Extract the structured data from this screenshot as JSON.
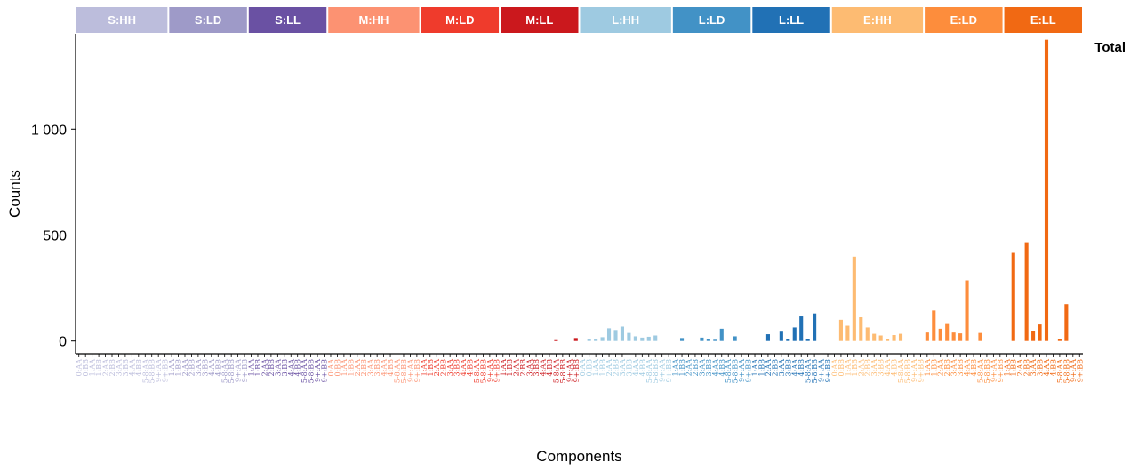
{
  "chart_data": {
    "type": "bar",
    "facet_label": "Total",
    "xlabel": "Components",
    "ylabel": "Counts",
    "ylim": [
      -60,
      1450
    ],
    "y_ticks": [
      0,
      500,
      1000
    ],
    "y_tick_labels": [
      "0",
      "500",
      "1 000"
    ],
    "grid": false,
    "legend": "none",
    "groups": [
      {
        "name": "S:HH",
        "color": "#bcbddc",
        "categories": [
          "0:AA",
          "0:BB",
          "1:AA",
          "1:BB",
          "2:AA",
          "2:BB",
          "3:AA",
          "3:BB",
          "4:AA",
          "4:BB",
          "5-8:AA",
          "5-8:BB",
          "9+:AA",
          "9+:BB"
        ],
        "values": [
          0,
          0,
          0,
          0,
          0,
          0,
          0,
          0,
          0,
          0,
          0,
          0,
          0,
          0
        ]
      },
      {
        "name": "S:LD",
        "color": "#9e9ac8",
        "categories": [
          "1:AA",
          "1:BB",
          "2:AA",
          "2:BB",
          "3:AA",
          "3:BB",
          "4:AA",
          "4:BB",
          "5-8:AA",
          "5-8:BB",
          "9+:AA",
          "9+:BB"
        ],
        "values": [
          0,
          0,
          0,
          0,
          0,
          0,
          0,
          0,
          0,
          0,
          0,
          0
        ]
      },
      {
        "name": "S:LL",
        "color": "#6a51a3",
        "categories": [
          "1:AA",
          "1:BB",
          "2:AA",
          "2:BB",
          "3:AA",
          "3:BB",
          "4:AA",
          "4:BB",
          "5-8:AA",
          "5-8:BB",
          "9+:AA",
          "9+:BB"
        ],
        "values": [
          0,
          0,
          0,
          0,
          0,
          0,
          0,
          0,
          0,
          0,
          0,
          0
        ]
      },
      {
        "name": "M:HH",
        "color": "#fc9272",
        "categories": [
          "0:AA",
          "0:BB",
          "1:AA",
          "1:BB",
          "2:AA",
          "2:BB",
          "3:AA",
          "3:BB",
          "4:AA",
          "4:BB",
          "5-8:AA",
          "5-8:BB",
          "9+:AA",
          "9+:BB"
        ],
        "values": [
          0,
          0,
          0,
          0,
          0,
          0,
          0,
          0,
          0,
          0,
          0,
          0,
          0,
          0
        ]
      },
      {
        "name": "M:LD",
        "color": "#ef3b2c",
        "categories": [
          "1:AA",
          "1:BB",
          "2:AA",
          "2:BB",
          "3:AA",
          "3:BB",
          "4:AA",
          "4:BB",
          "5-8:AA",
          "5-8:BB",
          "9+:AA",
          "9+:BB"
        ],
        "values": [
          0,
          0,
          0,
          0,
          0,
          0,
          0,
          0,
          0,
          0,
          0,
          0
        ]
      },
      {
        "name": "M:LL",
        "color": "#cb181d",
        "categories": [
          "1:AA",
          "1:BB",
          "2:AA",
          "2:BB",
          "3:AA",
          "3:BB",
          "4:AA",
          "4:BB",
          "5-8:AA",
          "5-8:BB",
          "9+:AA",
          "9+:BB"
        ],
        "values": [
          0,
          0,
          0,
          0,
          0,
          0,
          0,
          0,
          4,
          0,
          0,
          14
        ]
      },
      {
        "name": "L:HH",
        "color": "#9ecae1",
        "categories": [
          "0:AA",
          "0:BB",
          "1:AA",
          "1:BB",
          "2:AA",
          "2:BB",
          "3:AA",
          "3:BB",
          "4:AA",
          "4:BB",
          "5-8:AA",
          "5-8:BB",
          "9+:AA",
          "9+:BB"
        ],
        "values": [
          0,
          8,
          10,
          18,
          60,
          52,
          68,
          38,
          22,
          16,
          20,
          26,
          0,
          0
        ]
      },
      {
        "name": "L:LD",
        "color": "#4292c6",
        "categories": [
          "1:AA",
          "1:BB",
          "2:AA",
          "2:BB",
          "3:AA",
          "3:BB",
          "4:AA",
          "4:BB",
          "5-8:AA",
          "5-8:BB",
          "9+:AA",
          "9+:BB"
        ],
        "values": [
          0,
          14,
          0,
          0,
          16,
          10,
          6,
          58,
          0,
          22,
          0,
          0
        ]
      },
      {
        "name": "L:LL",
        "color": "#2171b5",
        "categories": [
          "1:AA",
          "1:BB",
          "2:AA",
          "2:BB",
          "3:AA",
          "3:BB",
          "4:AA",
          "4:BB",
          "5-8:AA",
          "5-8:BB",
          "9+:AA",
          "9+:BB"
        ],
        "values": [
          0,
          0,
          32,
          0,
          44,
          10,
          64,
          116,
          8,
          130,
          0,
          0
        ]
      },
      {
        "name": "E:HH",
        "color": "#fdbb72",
        "categories": [
          "0:AA",
          "0:BB",
          "1:AA",
          "1:BB",
          "2:AA",
          "2:BB",
          "3:AA",
          "3:BB",
          "4:AA",
          "4:BB",
          "5-8:AA",
          "5-8:BB",
          "9+:AA",
          "9+:BB"
        ],
        "values": [
          0,
          100,
          72,
          398,
          112,
          64,
          34,
          26,
          8,
          28,
          34,
          0,
          0,
          0
        ]
      },
      {
        "name": "E:LD",
        "color": "#fd8d3c",
        "categories": [
          "1:AA",
          "1:BB",
          "2:AA",
          "2:BB",
          "3:AA",
          "3:BB",
          "4:AA",
          "4:BB",
          "5-8:AA",
          "5-8:BB",
          "9+:AA",
          "9+:BB"
        ],
        "values": [
          40,
          144,
          58,
          80,
          40,
          36,
          286,
          0,
          38,
          0,
          0,
          0
        ]
      },
      {
        "name": "E:LL",
        "color": "#f16913",
        "categories": [
          "1:AA",
          "1:BB",
          "2:AA",
          "2:BB",
          "3:AA",
          "3:BB",
          "4:AA",
          "4:BB",
          "5-8:AA",
          "5-8:BB",
          "9+:AA",
          "9+:BB"
        ],
        "values": [
          0,
          416,
          0,
          466,
          48,
          78,
          1422,
          0,
          8,
          174,
          0,
          0
        ]
      }
    ]
  }
}
